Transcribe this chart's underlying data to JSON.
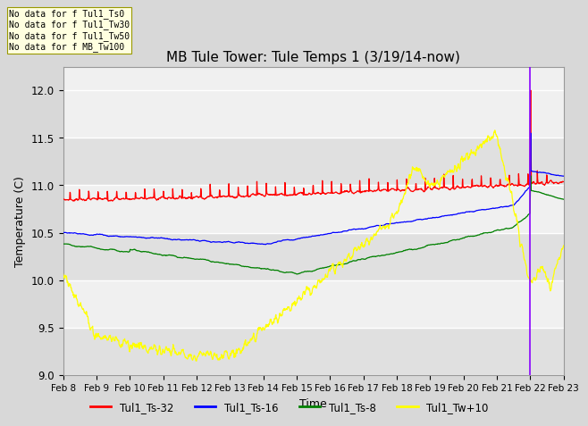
{
  "title": "MB Tule Tower: Tule Temps 1 (3/19/14-now)",
  "xlabel": "Time",
  "ylabel": "Temperature (C)",
  "ylim": [
    9.0,
    12.25
  ],
  "yticks": [
    9.0,
    9.5,
    10.0,
    10.5,
    11.0,
    11.5,
    12.0
  ],
  "date_labels": [
    "Feb 8",
    "Feb 9",
    "Feb 10",
    "Feb 11",
    "Feb 12",
    "Feb 13",
    "Feb 14",
    "Feb 15",
    "Feb 16",
    "Feb 17",
    "Feb 18",
    "Feb 19",
    "Feb 20",
    "Feb 21",
    "Feb 22",
    "Feb 23"
  ],
  "no_data_texts": [
    "No data for f Tul1_Ts0",
    "No data for f Tul1_Tw30",
    "No data for f Tul1_Tw50",
    "No data for f MB_Tw100"
  ],
  "legend_labels": [
    "Tul1_Ts-32",
    "Tul1_Ts-16",
    "Tul1_Ts-8",
    "Tul1_Tw+10"
  ],
  "legend_colors": [
    "red",
    "blue",
    "green",
    "yellow"
  ],
  "bg_color": "#d8d8d8",
  "plot_bg_color": "#f0f0f0",
  "grid_color": "#ffffff",
  "n_points": 1500
}
